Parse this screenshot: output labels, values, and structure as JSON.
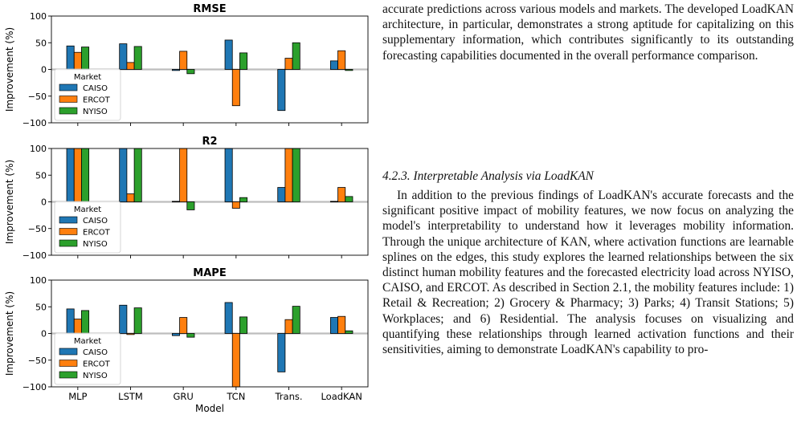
{
  "figure": {
    "chart_data": [
      {
        "type": "bar",
        "title": "RMSE",
        "ylabel": "Improvement (%)",
        "xlabel": "",
        "ylim": [
          -100,
          100
        ],
        "yticks": [
          -100,
          -50,
          0,
          50,
          100
        ],
        "categories": [
          "MLP",
          "LSTM",
          "GRU",
          "TCN",
          "Trans.",
          "LoadKAN"
        ],
        "legend_title": "Market",
        "legend_position": "lower-left",
        "series": [
          {
            "name": "CAISO",
            "color": "#1f77b4",
            "values": [
              44,
              48,
              -2,
              55,
              -77,
              16
            ]
          },
          {
            "name": "ERCOT",
            "color": "#ff7f0e",
            "values": [
              32,
              13,
              34,
              -68,
              21,
              35
            ]
          },
          {
            "name": "NYISO",
            "color": "#2ca02c",
            "values": [
              42,
              43,
              -8,
              31,
              50,
              -2
            ]
          }
        ]
      },
      {
        "type": "bar",
        "title": "R2",
        "ylabel": "Improvement (%)",
        "xlabel": "",
        "ylim": [
          -100,
          100
        ],
        "yticks": [
          -100,
          -50,
          0,
          50,
          100
        ],
        "categories": [
          "MLP",
          "LSTM",
          "GRU",
          "TCN",
          "Trans.",
          "LoadKAN"
        ],
        "legend_title": "Market",
        "legend_position": "lower-left",
        "series": [
          {
            "name": "CAISO",
            "color": "#1f77b4",
            "values": [
              100,
              100,
              1,
              100,
              27,
              1
            ]
          },
          {
            "name": "ERCOT",
            "color": "#ff7f0e",
            "values": [
              100,
              15,
              100,
              -12,
              100,
              27
            ]
          },
          {
            "name": "NYISO",
            "color": "#2ca02c",
            "values": [
              100,
              100,
              -15,
              8,
              100,
              10
            ]
          }
        ]
      },
      {
        "type": "bar",
        "title": "MAPE",
        "ylabel": "Improvement (%)",
        "xlabel": "Model",
        "ylim": [
          -100,
          100
        ],
        "yticks": [
          -100,
          -50,
          0,
          50,
          100
        ],
        "categories": [
          "MLP",
          "LSTM",
          "GRU",
          "TCN",
          "Trans.",
          "LoadKAN"
        ],
        "legend_title": "Market",
        "legend_position": "lower-left",
        "series": [
          {
            "name": "CAISO",
            "color": "#1f77b4",
            "values": [
              46,
              53,
              -4,
              58,
              -72,
              30
            ]
          },
          {
            "name": "ERCOT",
            "color": "#ff7f0e",
            "values": [
              27,
              -2,
              30,
              -100,
              26,
              32
            ]
          },
          {
            "name": "NYISO",
            "color": "#2ca02c",
            "values": [
              43,
              48,
              -7,
              31,
              51,
              5
            ]
          }
        ]
      }
    ]
  },
  "text": {
    "para1": "accurate predictions across various models and markets. The developed LoadKAN architecture, in particular, demonstrates a strong aptitude for capitalizing on this supplementary information, which contributes significantly to its outstanding forecasting capabilities documented in the overall performance comparison.",
    "heading": "4.2.3. Interpretable Analysis via LoadKAN",
    "para2": "In addition to the previous findings of LoadKAN's accurate forecasts and the significant positive impact of mobility features, we now focus on analyzing the model's interpretability to understand how it leverages mobility information. Through the unique architecture of KAN, where activation functions are learnable splines on the edges, this study explores the learned relationships between the six distinct human mobility features and the forecasted electricity load across NYISO, CAISO, and ERCOT. As described in Section 2.1, the mobility features include: 1) Retail & Recreation; 2) Grocery & Pharmacy; 3) Parks; 4) Transit Stations; 5) Workplaces; and 6) Residential. The analysis focuses on visualizing and quantifying these relationships through learned activation functions and their sensitivities, aiming to demonstrate LoadKAN's capability to pro-"
  }
}
